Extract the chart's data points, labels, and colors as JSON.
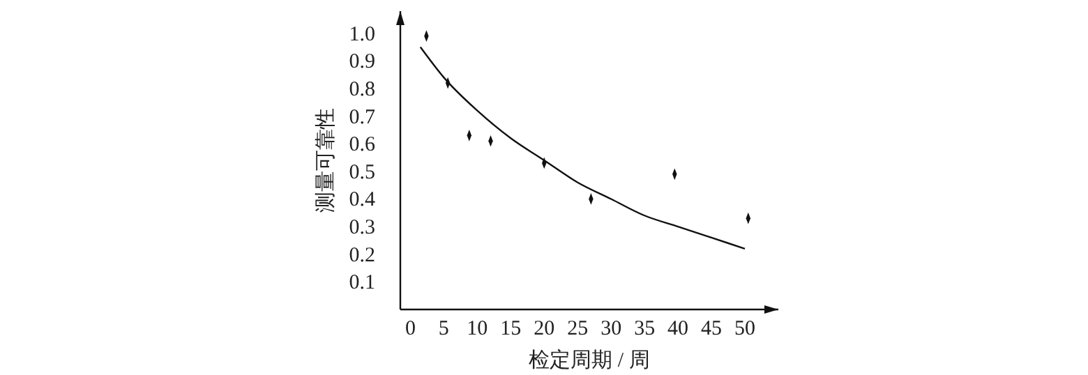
{
  "chart_data": {
    "type": "scatter",
    "xlabel": "检定周期 / 周",
    "ylabel": "测量可靠性",
    "xlim": [
      -1.5,
      55
    ],
    "ylim": [
      0,
      1.08
    ],
    "xticks": [
      0,
      5,
      10,
      15,
      20,
      25,
      30,
      35,
      40,
      45,
      50
    ],
    "yticks": [
      0.1,
      0.2,
      0.3,
      0.4,
      0.5,
      0.6,
      0.7,
      0.8,
      0.9,
      {
        "value": 1,
        "label": "1.0"
      }
    ],
    "marker": "diamond",
    "series": [
      {
        "color": "#111111",
        "x": [
          2.4,
          5.6,
          8.8,
          12,
          20,
          27,
          39.5,
          50.5
        ],
        "values": [
          0.99,
          0.82,
          0.63,
          0.61,
          0.53,
          0.4,
          0.49,
          0.33
        ]
      },
      {
        "type": "line",
        "color": "#111111",
        "marker": "none",
        "line_style": "solid",
        "x": [
          1.5,
          5,
          10,
          15,
          20,
          25,
          30,
          35,
          40,
          45,
          50
        ],
        "values": [
          0.95,
          0.84,
          0.72,
          0.62,
          0.54,
          0.46,
          0.4,
          0.34,
          0.3,
          0.26,
          0.22
        ]
      }
    ]
  }
}
